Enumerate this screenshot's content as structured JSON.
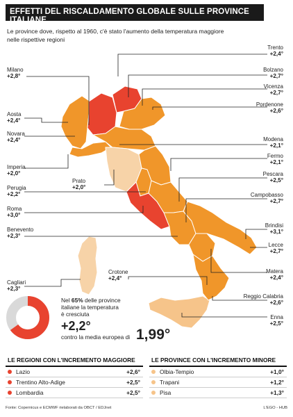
{
  "title": "EFFETTI DEL RISCALDAMENTO GLOBALE SULLE PROVINCE ITALIANE",
  "subtitle": "Le province dove, rispetto al 1960, c'è stato l'aumento della temperatura maggiore nelle rispettive regioni",
  "colors": {
    "dark_red": "#e8432f",
    "orange": "#f0962a",
    "light_orange": "#f6c48a",
    "peach": "#f7d3a8",
    "border": "#ffffff",
    "leader": "#222222"
  },
  "labels": [
    {
      "name": "Trento",
      "value": "+2,4°"
    },
    {
      "name": "Milano",
      "value": "+2,8°"
    },
    {
      "name": "Bolzano",
      "value": "+2,7°"
    },
    {
      "name": "Vicenza",
      "value": "+2,7°"
    },
    {
      "name": "Pordenone",
      "value": "+2,6°"
    },
    {
      "name": "Aosta",
      "value": "+2,4°"
    },
    {
      "name": "Novara",
      "value": "+2,4°"
    },
    {
      "name": "Modena",
      "value": "+2,1°"
    },
    {
      "name": "Fermo",
      "value": "+2,1°"
    },
    {
      "name": "Imperia",
      "value": "+2,0°"
    },
    {
      "name": "Pescara",
      "value": "+2,5°"
    },
    {
      "name": "Prato",
      "value": "+2,0°"
    },
    {
      "name": "Perugia",
      "value": "+2,2°"
    },
    {
      "name": "Campobasso",
      "value": "+2,7°"
    },
    {
      "name": "Roma",
      "value": "+3,0°"
    },
    {
      "name": "Brindisi",
      "value": "+3,1°"
    },
    {
      "name": "Benevento",
      "value": "+2,3°"
    },
    {
      "name": "Lecce",
      "value": "+2,7°"
    },
    {
      "name": "Matera",
      "value": "+2,4°"
    },
    {
      "name": "Crotone",
      "value": "+2,4°"
    },
    {
      "name": "Cagliari",
      "value": "+2,3°"
    },
    {
      "name": "Reggio Calabria",
      "value": "+2,6°"
    },
    {
      "name": "Enna",
      "value": "+2,5°"
    }
  ],
  "stat": {
    "percent": 65,
    "line_prefix": "Nel ",
    "percent_label": "65%",
    "line1_rest": " delle province",
    "line2": "italiane  la temperatura",
    "line3": "è cresciuta",
    "big_value": "+2,2°",
    "contro_text": "contro la media europea di",
    "europe_value": "1,99°"
  },
  "table_regions": {
    "heading": "LE REGIONI CON L'INCREMENTO MAGGIORE",
    "rows": [
      {
        "name": "Lazio",
        "value": "+2,6°",
        "color": "#e8432f"
      },
      {
        "name": "Trentino Alto-Adige",
        "value": "+2,5°",
        "color": "#e8432f"
      },
      {
        "name": "Lombardia",
        "value": "+2,5°",
        "color": "#e8432f"
      }
    ]
  },
  "table_provinces": {
    "heading": "LE PROVINCE CON L'INCREMENTO MINORE",
    "rows": [
      {
        "name": "Olbia-Tempio",
        "value": "+1,0°",
        "color": "#f6c48a"
      },
      {
        "name": "Trapani",
        "value": "+1,2°",
        "color": "#f6c48a"
      },
      {
        "name": "Pisa",
        "value": "+1,3°",
        "color": "#f6c48a"
      }
    ]
  },
  "footer": {
    "source": "Fonte: Copernicus e ECMWF rielaborati da OBCT / EDJnet",
    "brand": "L'EGO - HUB"
  }
}
